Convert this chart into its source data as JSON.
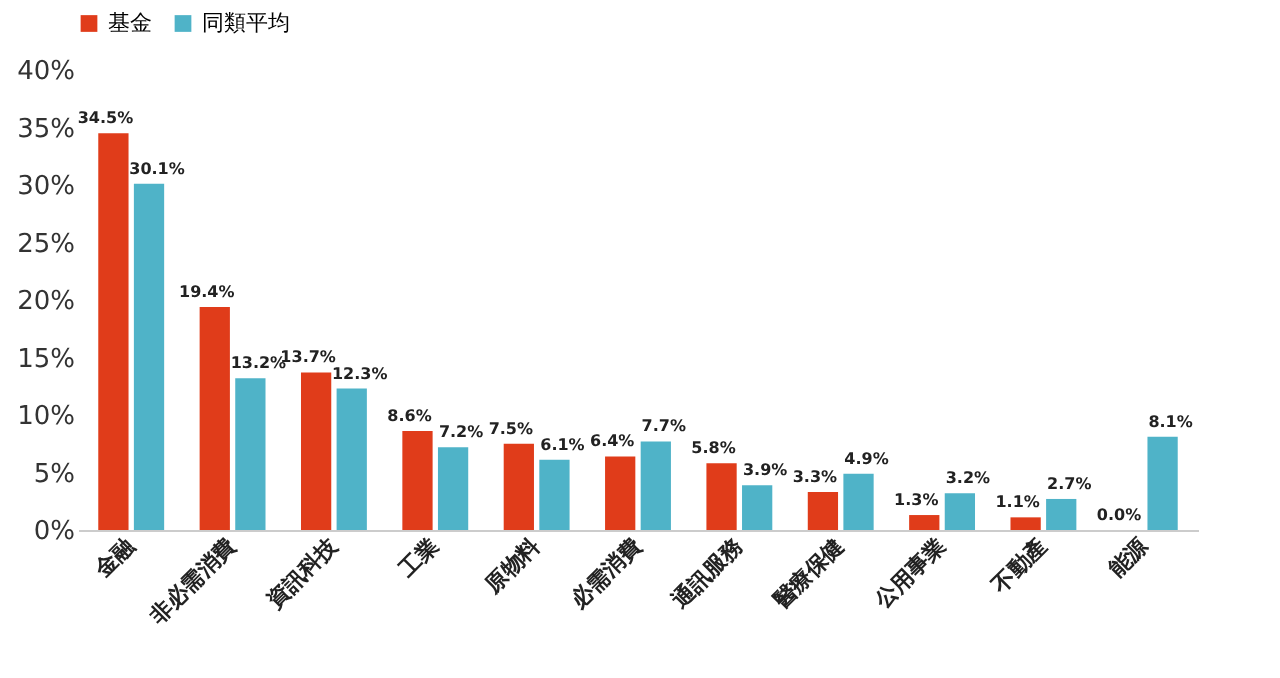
{
  "chart_data": {
    "type": "bar",
    "categories": [
      "金融",
      "非必需消費",
      "資訊科技",
      "工業",
      "原物料",
      "必需消費",
      "通訊服務",
      "醫療保健",
      "公用事業",
      "不動產",
      "能源"
    ],
    "series": [
      {
        "name": "基金",
        "color": "#e03c1a",
        "values": [
          34.5,
          19.4,
          13.7,
          8.6,
          7.5,
          6.4,
          5.8,
          3.3,
          1.3,
          1.1,
          0.0
        ],
        "value_labels": [
          "34.5%",
          "19.4%",
          "13.7%",
          "8.6%",
          "7.5%",
          "6.4%",
          "5.8%",
          "3.3%",
          "1.3%",
          "1.1%",
          "0.0%"
        ]
      },
      {
        "name": "同類平均",
        "color": "#4fb3c8",
        "values": [
          30.1,
          13.2,
          12.3,
          7.2,
          6.1,
          7.7,
          3.9,
          4.9,
          3.2,
          2.7,
          8.1
        ],
        "value_labels": [
          "30.1%",
          "13.2%",
          "12.3%",
          "7.2%",
          "6.1%",
          "7.7%",
          "3.9%",
          "4.9%",
          "3.2%",
          "2.7%",
          "8.1%"
        ]
      }
    ],
    "ylim": [
      0,
      40
    ],
    "yticks": [
      {
        "value": 0,
        "label": "0%"
      },
      {
        "value": 5,
        "label": "5%"
      },
      {
        "value": 10,
        "label": "10%"
      },
      {
        "value": 15,
        "label": "15%"
      },
      {
        "value": 20,
        "label": "20%"
      },
      {
        "value": 25,
        "label": "25%"
      },
      {
        "value": 30,
        "label": "30%"
      },
      {
        "value": 35,
        "label": "35%"
      },
      {
        "value": 40,
        "label": "40%"
      }
    ],
    "grid": false,
    "legend": "top"
  }
}
